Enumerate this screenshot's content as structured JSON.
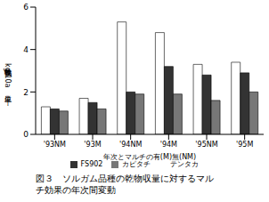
{
  "chart_data": {
    "type": "bar",
    "title": "図３　ソルガム品種の乾物収量に対するマルチ効果の年次間変動",
    "x_label": "年次とマルチの有(M)無(NM)",
    "y_label": "乾物収量kg/10a 単位 千",
    "categories": [
      "'93NM",
      "'93M",
      "'94NM",
      "'94M",
      "'95NM",
      "'95M"
    ],
    "series": [
      {
        "name": "テンタカ",
        "color": "#ffffff",
        "values": [
          1.3,
          1.7,
          5.3,
          4.8,
          3.3,
          3.4
        ]
      },
      {
        "name": "FS902",
        "color": "#333333",
        "values": [
          1.2,
          1.5,
          2.0,
          3.2,
          2.8,
          2.9
        ]
      },
      {
        "name": "カピタチ",
        "color": "#777777",
        "values": [
          1.1,
          1.2,
          1.9,
          1.9,
          1.6,
          2.0
        ]
      }
    ],
    "ylim": [
      0,
      6
    ],
    "yticks": [
      0,
      2,
      4,
      6
    ],
    "grid": false,
    "legend": "bottom"
  }
}
